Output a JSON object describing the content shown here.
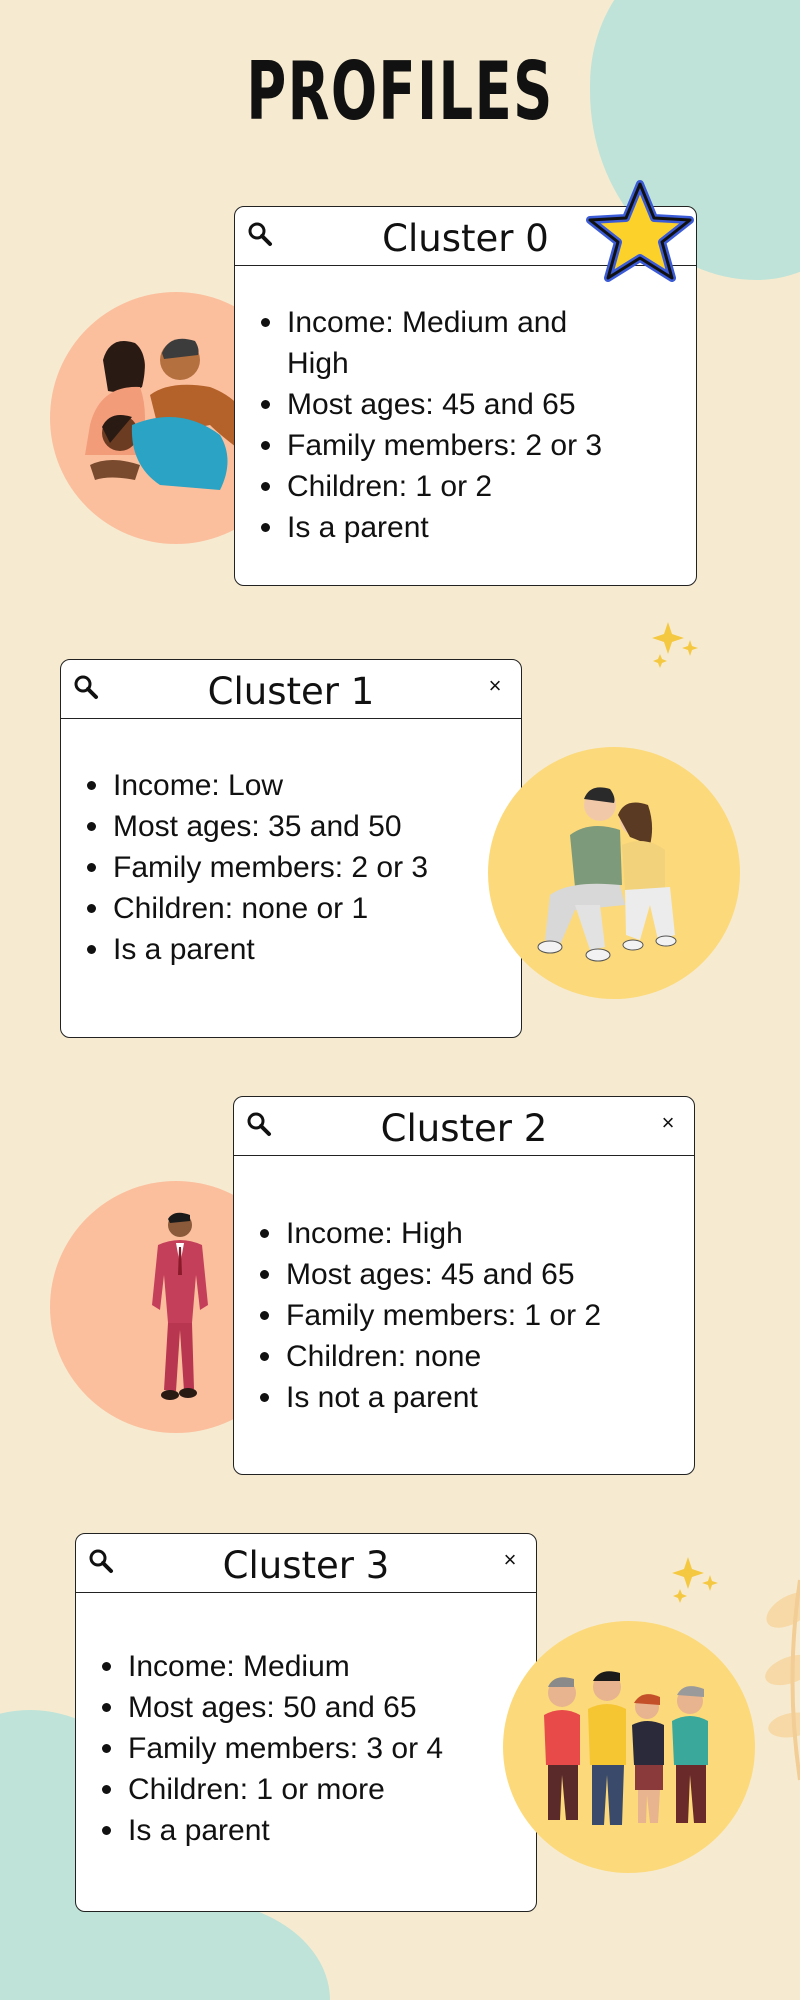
{
  "page": {
    "title": "PROFILES"
  },
  "colors": {
    "background": "#f6ebd0",
    "teal_blob": "#bfe3d8",
    "peach_circle": "#fbbf9e",
    "yellow_circle": "#fcd97a",
    "star": "#fcd12a",
    "star_outline": "#3b5bd6"
  },
  "icons": {
    "search": "search-icon",
    "close": "close-icon",
    "star": "star-icon",
    "sparkle": "sparkle-icon"
  },
  "close_glyph": "×",
  "clusters": [
    {
      "title": "Cluster 0",
      "items": [
        "Income: Medium and High",
        "Most ages: 45 and 65",
        "Family members: 2 or 3",
        "Children: 1 or 2",
        "Is a parent"
      ]
    },
    {
      "title": "Cluster 1",
      "items": [
        "Income: Low",
        "Most ages: 35 and 50",
        "Family members: 2 or 3",
        "Children: none or 1",
        "Is a parent"
      ]
    },
    {
      "title": "Cluster 2",
      "items": [
        "Income: High",
        "Most ages: 45 and 65",
        "Family members: 1 or 2",
        "Children: none",
        "Is not a parent"
      ]
    },
    {
      "title": "Cluster 3",
      "items": [
        "Income: Medium",
        "Most ages: 50 and 65",
        "Family members: 3 or 4",
        "Children: 1 or more",
        "Is a parent"
      ]
    }
  ]
}
